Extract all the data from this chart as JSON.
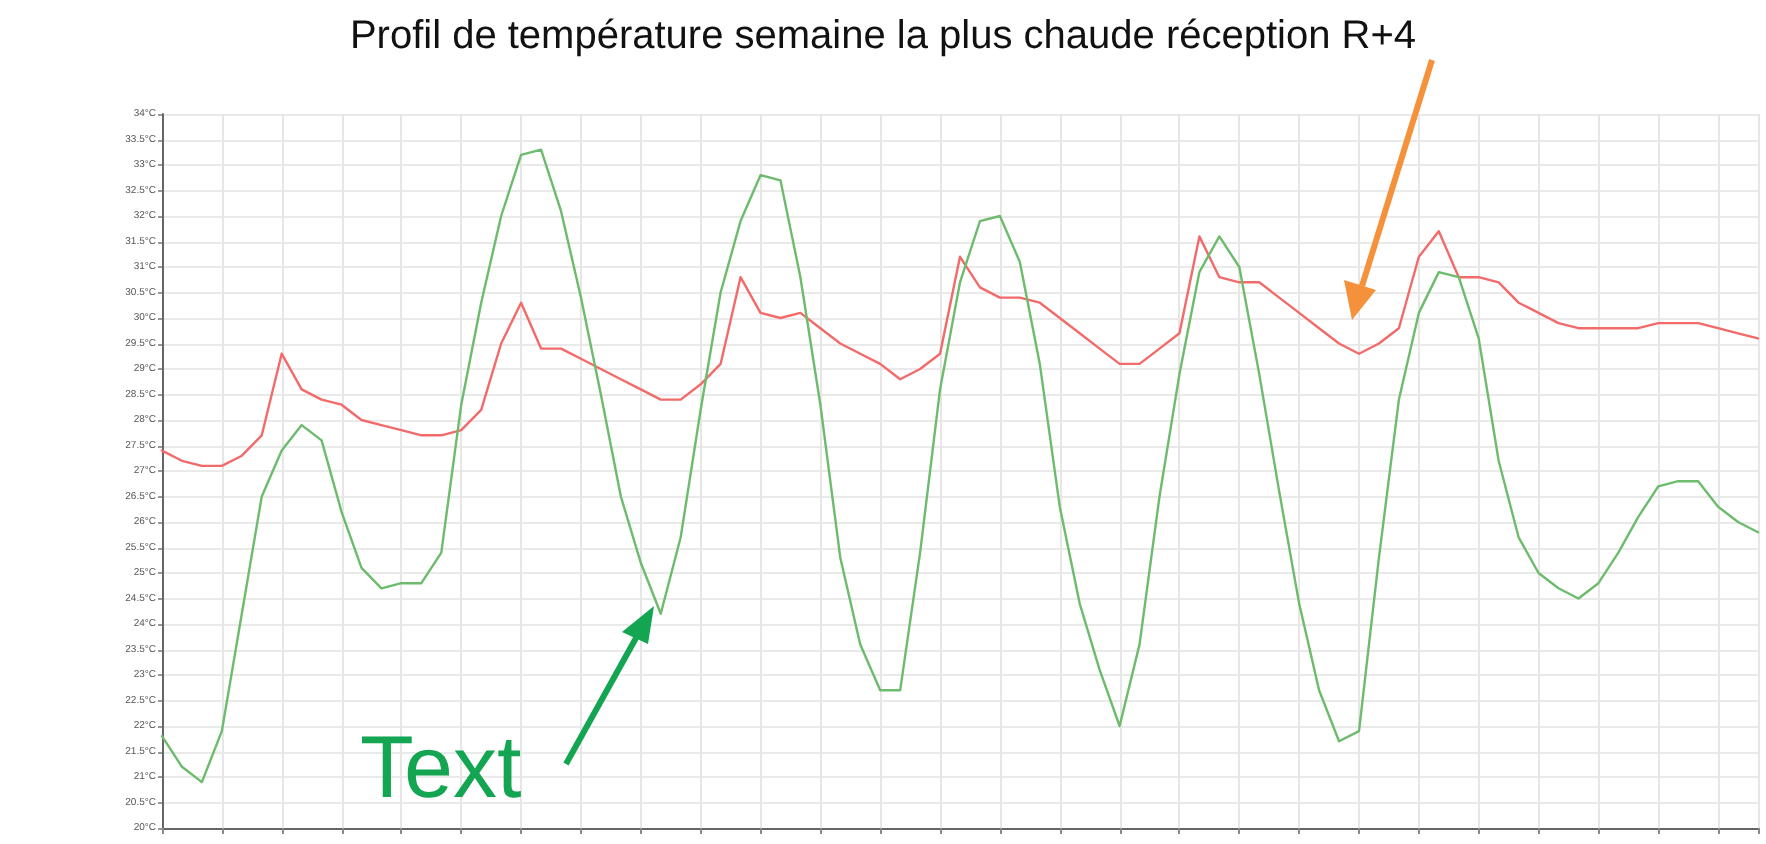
{
  "chart_data": {
    "type": "line",
    "title": "Profil de température semaine la plus chaude réception R+4",
    "categories": [
      null,
      null,
      null,
      null,
      null,
      null,
      null,
      null,
      null,
      null,
      null,
      null,
      null,
      null,
      null,
      null,
      null,
      null,
      null,
      null,
      null,
      null,
      null,
      null,
      null,
      null,
      null,
      null,
      null,
      null,
      null,
      null,
      null,
      null,
      null,
      null,
      null,
      null,
      null,
      null,
      null,
      null,
      null,
      null,
      null,
      null,
      null,
      null,
      null,
      null,
      null,
      null,
      null,
      null,
      null,
      null,
      null,
      null,
      null,
      null,
      null,
      null,
      null,
      null,
      null,
      null,
      null,
      null,
      null,
      null,
      null,
      null,
      null,
      null,
      null,
      null,
      null,
      null,
      null,
      null,
      null
    ],
    "series": [
      {
        "color": "#f26a6a",
        "values": [
          27.4,
          27.2,
          27.1,
          27.1,
          27.3,
          27.7,
          29.3,
          28.6,
          28.4,
          28.3,
          28.0,
          27.9,
          27.8,
          27.7,
          27.7,
          27.8,
          28.2,
          29.5,
          30.3,
          29.4,
          29.4,
          29.2,
          29.0,
          28.8,
          28.6,
          28.4,
          28.4,
          28.7,
          29.1,
          30.8,
          30.1,
          30.0,
          30.1,
          29.8,
          29.5,
          29.3,
          29.1,
          28.8,
          29.0,
          29.3,
          31.2,
          30.6,
          30.4,
          30.4,
          30.3,
          30.0,
          29.7,
          29.4,
          29.1,
          29.1,
          29.4,
          29.7,
          31.6,
          30.8,
          30.7,
          30.7,
          30.4,
          30.1,
          29.8,
          29.5,
          29.3,
          29.5,
          29.8,
          31.2,
          31.7,
          30.8,
          30.8,
          30.7,
          30.3,
          30.1,
          29.9,
          29.8,
          29.8,
          29.8,
          29.8,
          29.9,
          29.9,
          29.9,
          29.8,
          29.7,
          29.6
        ]
      },
      {
        "color": "#6dbb6d",
        "values": [
          21.8,
          21.2,
          20.9,
          21.9,
          24.2,
          26.5,
          27.4,
          27.9,
          27.6,
          26.2,
          25.1,
          24.7,
          24.8,
          24.8,
          25.4,
          28.3,
          30.3,
          32.0,
          33.2,
          33.3,
          32.1,
          30.4,
          28.5,
          26.5,
          25.2,
          24.2,
          25.7,
          28.2,
          30.5,
          31.9,
          32.8,
          32.7,
          30.8,
          28.3,
          25.3,
          23.6,
          22.7,
          22.7,
          25.4,
          28.6,
          30.7,
          31.9,
          32.0,
          31.1,
          29.1,
          26.3,
          24.4,
          23.1,
          22.0,
          23.6,
          26.5,
          28.9,
          30.9,
          31.6,
          31.0,
          28.9,
          26.6,
          24.4,
          22.7,
          21.7,
          21.9,
          25.3,
          28.4,
          30.1,
          30.9,
          30.8,
          29.6,
          27.2,
          25.7,
          25.0,
          24.7,
          24.5,
          24.8,
          25.4,
          26.1,
          26.7,
          26.8,
          26.8,
          26.3,
          26.0,
          25.8
        ]
      }
    ],
    "ylim": [
      20,
      34
    ],
    "yticks": [
      {
        "value": 20,
        "label": "20°C"
      },
      {
        "value": 20.5,
        "label": "20.5°C"
      },
      {
        "value": 21,
        "label": "21°C"
      },
      {
        "value": 21.5,
        "label": "21.5°C"
      },
      {
        "value": 22,
        "label": "22°C"
      },
      {
        "value": 22.5,
        "label": "22.5°C"
      },
      {
        "value": 23,
        "label": "23°C"
      },
      {
        "value": 23.5,
        "label": "23.5°C"
      },
      {
        "value": 24,
        "label": "24°C"
      },
      {
        "value": 24.5,
        "label": "24.5°C"
      },
      {
        "value": 25,
        "label": "25°C"
      },
      {
        "value": 25.5,
        "label": "25.5°C"
      },
      {
        "value": 26,
        "label": "26°C"
      },
      {
        "value": 26.5,
        "label": "26.5°C"
      },
      {
        "value": 27,
        "label": "27°C"
      },
      {
        "value": 27.5,
        "label": "27.5°C"
      },
      {
        "value": 28,
        "label": "28°C"
      },
      {
        "value": 28.5,
        "label": "28.5°C"
      },
      {
        "value": 29,
        "label": "29°C"
      },
      {
        "value": 29.5,
        "label": "29.5°C"
      },
      {
        "value": 30,
        "label": "30°C"
      },
      {
        "value": 30.5,
        "label": "30.5°C"
      },
      {
        "value": 31,
        "label": "31°C"
      },
      {
        "value": 31.5,
        "label": "31.5°C"
      },
      {
        "value": 32,
        "label": "32°C"
      },
      {
        "value": 32.5,
        "label": "32.5°C"
      },
      {
        "value": 33,
        "label": "33°C"
      },
      {
        "value": 33.5,
        "label": "33.5°C"
      },
      {
        "value": 34,
        "label": "34°C"
      }
    ],
    "annotations": [
      "Text"
    ],
    "grid": true,
    "marker": "none",
    "line_style": "solid"
  }
}
